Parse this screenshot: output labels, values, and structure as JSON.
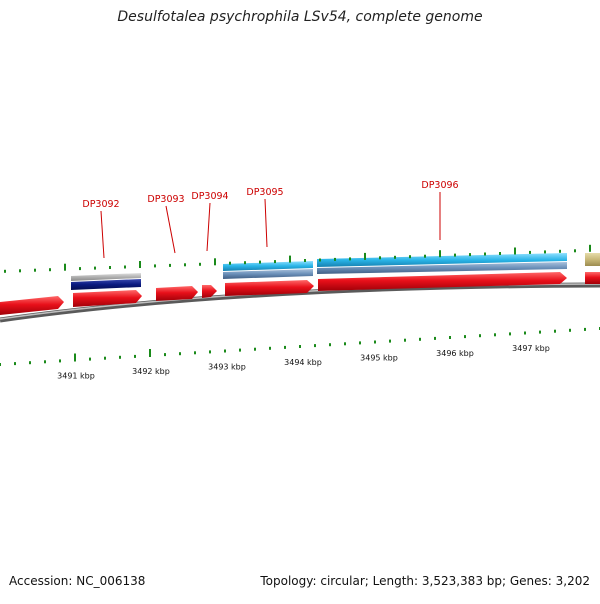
{
  "title": "Desulfotalea psychrophila LSv54, complete genome",
  "footer": {
    "accession": "Accession: NC_006138",
    "summary": "Topology: circular; Length: 3,523,383 bp; Genes: 3,202"
  },
  "colors": {
    "cds_forward": "#e8101a",
    "gene_cyan": "#2ab5e8",
    "gene_steel": "#6a8fb8",
    "gene_navy": "#0a1a80",
    "gene_gray": "#b0b0b0",
    "gene_khaki": "#c8b878",
    "tick_green": "#1a8a1a",
    "label_red": "#cc0000",
    "backbone": "#808080"
  },
  "axis": {
    "unit": "kbp",
    "ticks": [
      {
        "kbp": 3491,
        "label": "3491 kbp"
      },
      {
        "kbp": 3492,
        "label": "3492 kbp"
      },
      {
        "kbp": 3493,
        "label": "3493 kbp"
      },
      {
        "kbp": 3494,
        "label": "3494 kbp"
      },
      {
        "kbp": 3495,
        "label": "3495 kbp"
      },
      {
        "kbp": 3496,
        "label": "3496 kbp"
      },
      {
        "kbp": 3497,
        "label": "3497 kbp"
      }
    ]
  },
  "gene_labels": [
    {
      "id": "DP3092",
      "label": "DP3092"
    },
    {
      "id": "DP3093",
      "label": "DP3093"
    },
    {
      "id": "DP3094",
      "label": "DP3094"
    },
    {
      "id": "DP3095",
      "label": "DP3095"
    },
    {
      "id": "DP3096",
      "label": "DP3096"
    }
  ]
}
